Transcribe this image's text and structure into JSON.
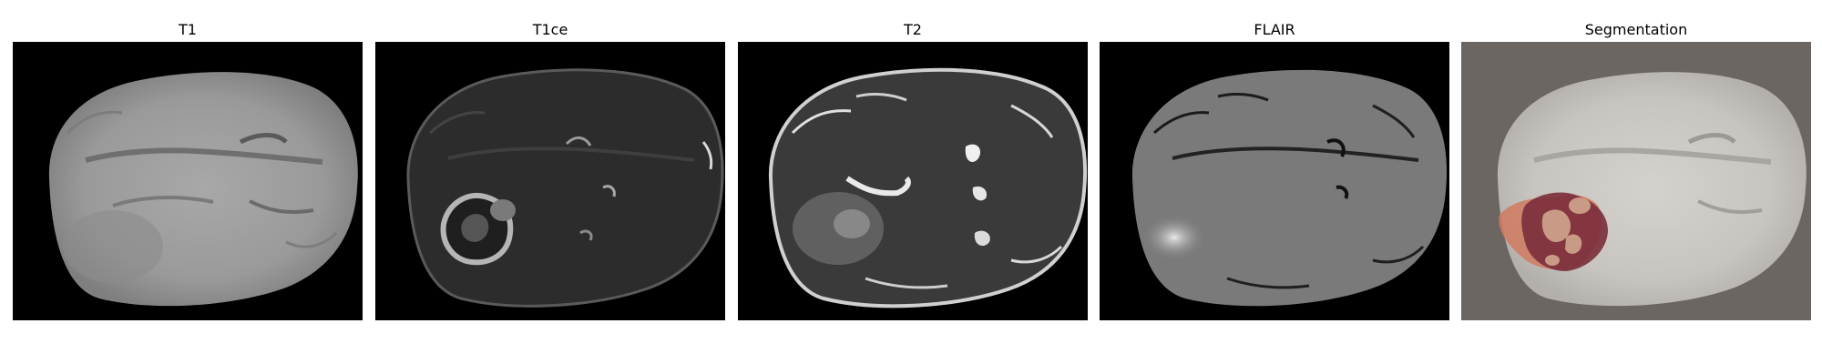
{
  "panels": [
    {
      "title": "T1",
      "background": "#000000"
    },
    {
      "title": "T1ce",
      "background": "#000000"
    },
    {
      "title": "T2",
      "background": "#000000"
    },
    {
      "title": "FLAIR",
      "background": "#000000"
    },
    {
      "title": "Segmentation",
      "background": "#6b6662"
    }
  ],
  "colors": {
    "figure_background": "#ffffff",
    "segmentation_edema": "#d07a60",
    "segmentation_necrotic_core": "#7a2e3a",
    "segmentation_enhancing": "#c99a86"
  }
}
